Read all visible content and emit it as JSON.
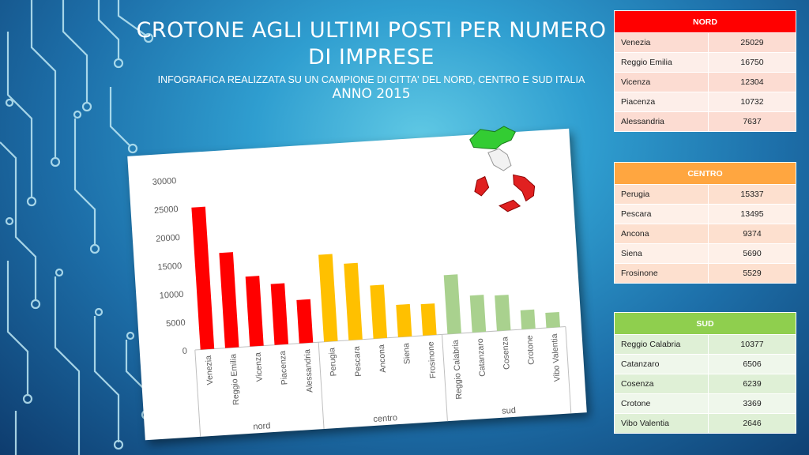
{
  "title": "CROTONE AGLI ULTIMI POSTI PER NUMERO DI IMPRESE",
  "subtitle": "INFOGRAFICA REALIZZATA SU UN CAMPIONE DI CITTA' DEL NORD, CENTRO E SUD ITALIA",
  "year": "ANNO 2015",
  "colors": {
    "nord": "#ff0000",
    "centro": "#ffc000",
    "sud": "#a9d18e"
  },
  "chart_data": {
    "type": "bar",
    "groups": [
      "nord",
      "centro",
      "sud"
    ],
    "categories": [
      "Venezia",
      "Reggio Emilia",
      "Vicenza",
      "Piacenza",
      "Alessandria",
      "Perugia",
      "Pescara",
      "Ancona",
      "Siena",
      "Frosinone",
      "Reggio Calabria",
      "Catanzaro",
      "Cosenza",
      "Crotone",
      "Vibo Valentia"
    ],
    "values": [
      25029,
      16750,
      12304,
      10732,
      7637,
      15337,
      13495,
      9374,
      5690,
      5529,
      10377,
      6506,
      6239,
      3369,
      2646
    ],
    "ylim": [
      0,
      30000
    ],
    "yticks": [
      "0",
      "5000",
      "10000",
      "15000",
      "20000",
      "25000",
      "30000"
    ],
    "grid": false
  },
  "tables": {
    "nord": {
      "header": "NORD",
      "rows": [
        [
          "Venezia",
          "25029"
        ],
        [
          "Reggio Emilia",
          "16750"
        ],
        [
          "Vicenza",
          "12304"
        ],
        [
          "Piacenza",
          "10732"
        ],
        [
          "Alessandria",
          "7637"
        ]
      ]
    },
    "centro": {
      "header": "CENTRO",
      "rows": [
        [
          "Perugia",
          "15337"
        ],
        [
          "Pescara",
          "13495"
        ],
        [
          "Ancona",
          "9374"
        ],
        [
          "Siena",
          "5690"
        ],
        [
          "Frosinone",
          "5529"
        ]
      ]
    },
    "sud": {
      "header": "SUD",
      "rows": [
        [
          "Reggio Calabria",
          "10377"
        ],
        [
          "Catanzaro",
          "6506"
        ],
        [
          "Cosenza",
          "6239"
        ],
        [
          "Crotone",
          "3369"
        ],
        [
          "Vibo Valentia",
          "2646"
        ]
      ]
    }
  }
}
